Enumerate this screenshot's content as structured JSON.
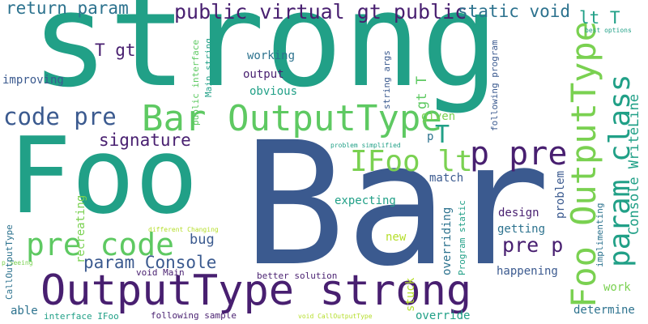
{
  "words": [
    {
      "text": "strong",
      "color": "#21a087"
    },
    {
      "text": "Bar",
      "color": "#3b5a8f"
    },
    {
      "text": "Foo",
      "color": "#21a087"
    },
    {
      "text": "OutputType strong",
      "color": "#481f70"
    },
    {
      "text": "Bar OutputType",
      "color": "#5ec962"
    },
    {
      "text": "Foo OutputType",
      "color": "#7ad151"
    },
    {
      "text": "p pre",
      "color": "#481f70"
    },
    {
      "text": "param class",
      "color": "#21a087"
    },
    {
      "text": "pre code",
      "color": "#5ec962"
    },
    {
      "text": "IFoo lt",
      "color": "#7ad151"
    },
    {
      "text": "code pre",
      "color": "#3b5a8f"
    },
    {
      "text": "public virtual gt public",
      "color": "#481f70"
    },
    {
      "text": "return param",
      "color": "#2c728e"
    },
    {
      "text": "static void",
      "color": "#2c728e"
    },
    {
      "text": "lt T",
      "color": "#21a087"
    },
    {
      "text": "param Console",
      "color": "#3b5a8f"
    },
    {
      "text": "pre p",
      "color": "#481f70"
    },
    {
      "text": "Console WriteLine",
      "color": "#21a087"
    },
    {
      "text": "signature",
      "color": "#481f70"
    },
    {
      "text": "T gt",
      "color": "#481f70"
    },
    {
      "text": "T",
      "color": "#21a087"
    },
    {
      "text": "gt T",
      "color": "#5ec962"
    },
    {
      "text": "bug",
      "color": "#3b5a8f"
    },
    {
      "text": "working",
      "color": "#2c728e"
    },
    {
      "text": "output",
      "color": "#481f70"
    },
    {
      "text": "obvious",
      "color": "#21a087"
    },
    {
      "text": "improving",
      "color": "#3b5a8f"
    },
    {
      "text": "expecting",
      "color": "#21a087"
    },
    {
      "text": "match",
      "color": "#3b5a8f"
    },
    {
      "text": "design",
      "color": "#481f70"
    },
    {
      "text": "getting",
      "color": "#2c728e"
    },
    {
      "text": "new",
      "color": "#b5de2b"
    },
    {
      "text": "happening",
      "color": "#3b5a8f"
    },
    {
      "text": "work",
      "color": "#7ad151"
    },
    {
      "text": "determine",
      "color": "#2c728e"
    },
    {
      "text": "override",
      "color": "#21a087"
    },
    {
      "text": "given",
      "color": "#7ad151"
    },
    {
      "text": "p",
      "color": "#2c728e"
    },
    {
      "text": "able",
      "color": "#2c728e"
    },
    {
      "text": "stuck",
      "color": "#b5de2b"
    },
    {
      "text": "void Main",
      "color": "#481f70"
    },
    {
      "text": "better solution",
      "color": "#481f70"
    },
    {
      "text": "following sample",
      "color": "#481f70"
    },
    {
      "text": "interface IFoo",
      "color": "#21a087"
    },
    {
      "text": "void CallOutputType",
      "color": "#b5de2b"
    },
    {
      "text": "problem simplified",
      "color": "#21a087"
    },
    {
      "text": "different Changing",
      "color": "#b5de2b"
    },
    {
      "text": "best options",
      "color": "#21a087"
    },
    {
      "text": "p Seeing",
      "color": "#7ad151"
    },
    {
      "text": "CallOutputType",
      "color": "#2c728e"
    },
    {
      "text": "recreating",
      "color": "#7ad151"
    },
    {
      "text": "public interface",
      "color": "#5ec962"
    },
    {
      "text": "Main string",
      "color": "#21a087"
    },
    {
      "text": "string args",
      "color": "#3b5a8f"
    },
    {
      "text": "following program",
      "color": "#3b5a8f"
    },
    {
      "text": "overriding",
      "color": "#2c728e"
    },
    {
      "text": "Program static",
      "color": "#21a087"
    },
    {
      "text": "problem",
      "color": "#3b5a8f"
    },
    {
      "text": "implimenting",
      "color": "#2c728e"
    }
  ]
}
